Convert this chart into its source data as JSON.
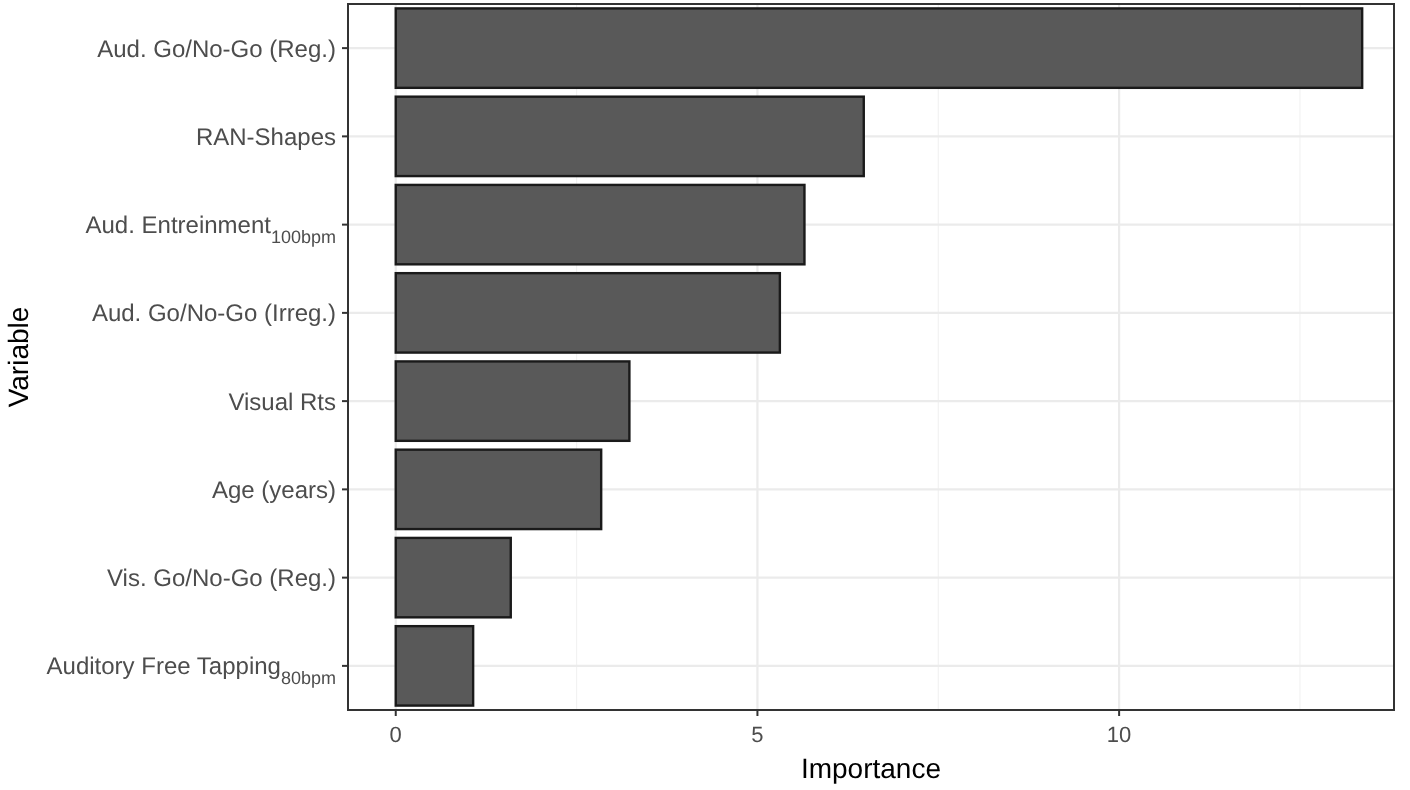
{
  "chart_data": {
    "type": "bar",
    "orientation": "horizontal",
    "xlabel": "Importance",
    "ylabel": "Variable",
    "categories": [
      "Aud. Go/No-Go (Reg.)",
      "RAN-Shapes",
      "Aud. Entreinment$_{100bpm}$",
      "Aud. Go/No-Go (Irreg.)",
      "Visual Rts",
      "Age (years)",
      "Vis. Go/No-Go (Reg.)",
      "Auditory Free Tapping$_{80bpm}$"
    ],
    "values": [
      13.36,
      6.47,
      5.65,
      5.31,
      3.23,
      2.84,
      1.59,
      1.07
    ],
    "color": "#595959",
    "xlim": [
      -0.66,
      13.8
    ],
    "xticks": [
      0,
      5,
      10
    ],
    "grid": true
  }
}
